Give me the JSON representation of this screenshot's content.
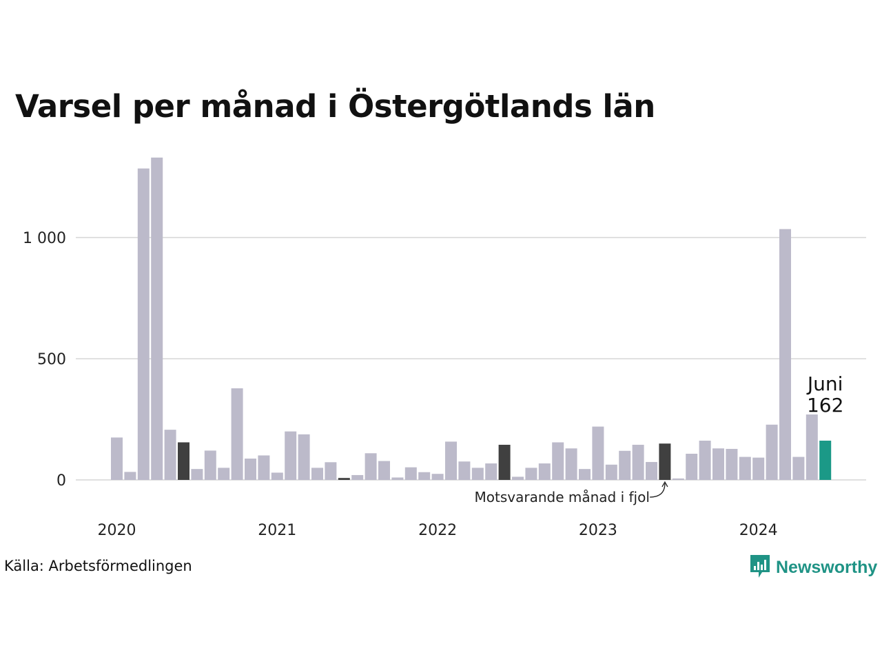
{
  "title": "Varsel per månad i Östergötlands län",
  "source": "Källa: Arbetsförmedlingen",
  "brand": {
    "name": "Newsworthy",
    "icon": "newsworthy-logo-icon"
  },
  "colors": {
    "bar": "#bcbaca",
    "same_month_last_years": "#404040",
    "current": "#1b9987",
    "grid": "#e0e0e0",
    "brand": "#1f9385"
  },
  "chart_data": {
    "type": "bar",
    "start": "2020-01",
    "values": [
      175,
      33,
      1285,
      1330,
      207,
      155,
      45,
      121,
      50,
      378,
      88,
      101,
      30,
      200,
      188,
      50,
      73,
      8,
      20,
      110,
      78,
      10,
      52,
      32,
      25,
      158,
      76,
      50,
      68,
      145,
      13,
      50,
      68,
      155,
      130,
      45,
      220,
      63,
      120,
      145,
      74,
      150,
      6,
      108,
      162,
      130,
      128,
      95,
      92,
      228,
      1035,
      95,
      270,
      162
    ],
    "highlight_indices": [
      5,
      17,
      29,
      41
    ],
    "current_index": 53,
    "x_ticks": [
      "2020",
      "2021",
      "2022",
      "2023",
      "2024"
    ],
    "y_ticks": [
      0,
      500,
      1000
    ],
    "y_tick_labels": [
      "0",
      "500",
      "1 000"
    ],
    "ylim": [
      0,
      1340
    ],
    "grid": true,
    "annotation": "Motsvarande månad i fjol",
    "current_label": {
      "month": "Juni",
      "value": "162"
    }
  }
}
